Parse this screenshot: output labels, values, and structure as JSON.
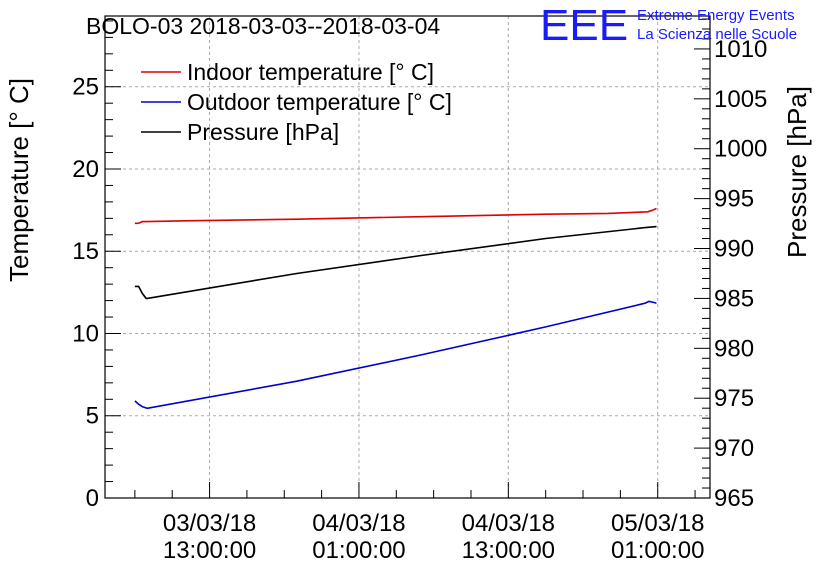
{
  "header": {
    "title": "BOLO-03 2018-03-03--2018-03-04",
    "logo_text": "EEE",
    "logo_line1": "Extreme Energy Events",
    "logo_line2": "La Scienza nelle Scuole",
    "logo_color": "#1a1aff"
  },
  "chart_data": {
    "type": "line",
    "ylabel": "Temperature [° C]",
    "ylabel_right": "Pressure [hPa]",
    "ylim": [
      0,
      29.3
    ],
    "ylim_right": [
      965,
      1013.3
    ],
    "grid": true,
    "legend_position": "top-left",
    "x_ticks": [
      {
        "date": "03/03/18",
        "time": "13:00:00",
        "hours": 13
      },
      {
        "date": "04/03/18",
        "time": "01:00:00",
        "hours": 25
      },
      {
        "date": "04/03/18",
        "time": "13:00:00",
        "hours": 37
      },
      {
        "date": "05/03/18",
        "time": "01:00:00",
        "hours": 49
      }
    ],
    "xlim_hours": [
      4.6,
      53.2
    ],
    "y_ticks": [
      0,
      5,
      10,
      15,
      20,
      25
    ],
    "y_ticks_right": [
      965,
      970,
      975,
      980,
      985,
      990,
      995,
      1000,
      1005,
      1010
    ],
    "series": [
      {
        "name": "Indoor temperature [° C]",
        "color": "#e00000",
        "axis": "left",
        "points": [
          [
            7.0,
            16.7
          ],
          [
            7.3,
            16.7
          ],
          [
            7.6,
            16.8
          ],
          [
            8.0,
            16.8
          ],
          [
            11.0,
            16.85
          ],
          [
            20.0,
            16.95
          ],
          [
            30.0,
            17.1
          ],
          [
            40.0,
            17.25
          ],
          [
            45.0,
            17.3
          ],
          [
            48.2,
            17.4
          ],
          [
            48.6,
            17.5
          ],
          [
            48.9,
            17.6
          ]
        ]
      },
      {
        "name": "Outdoor temperature [° C]",
        "color": "#0000cc",
        "axis": "left",
        "points": [
          [
            7.0,
            5.9
          ],
          [
            7.3,
            5.7
          ],
          [
            7.6,
            5.55
          ],
          [
            8.0,
            5.45
          ],
          [
            20.0,
            7.1
          ],
          [
            30.0,
            8.7
          ],
          [
            40.0,
            10.4
          ],
          [
            47.5,
            11.75
          ],
          [
            48.0,
            11.85
          ],
          [
            48.3,
            11.95
          ],
          [
            48.9,
            11.85
          ]
        ]
      },
      {
        "name": "Pressure [hPa]",
        "color": "#000000",
        "axis": "right",
        "points": [
          [
            7.0,
            986.2
          ],
          [
            7.3,
            986.2
          ],
          [
            7.6,
            985.5
          ],
          [
            7.9,
            985.0
          ],
          [
            8.0,
            985.0
          ],
          [
            20.0,
            987.5
          ],
          [
            30.0,
            989.3
          ],
          [
            40.0,
            991.0
          ],
          [
            48.0,
            992.1
          ],
          [
            48.9,
            992.2
          ]
        ]
      }
    ]
  }
}
